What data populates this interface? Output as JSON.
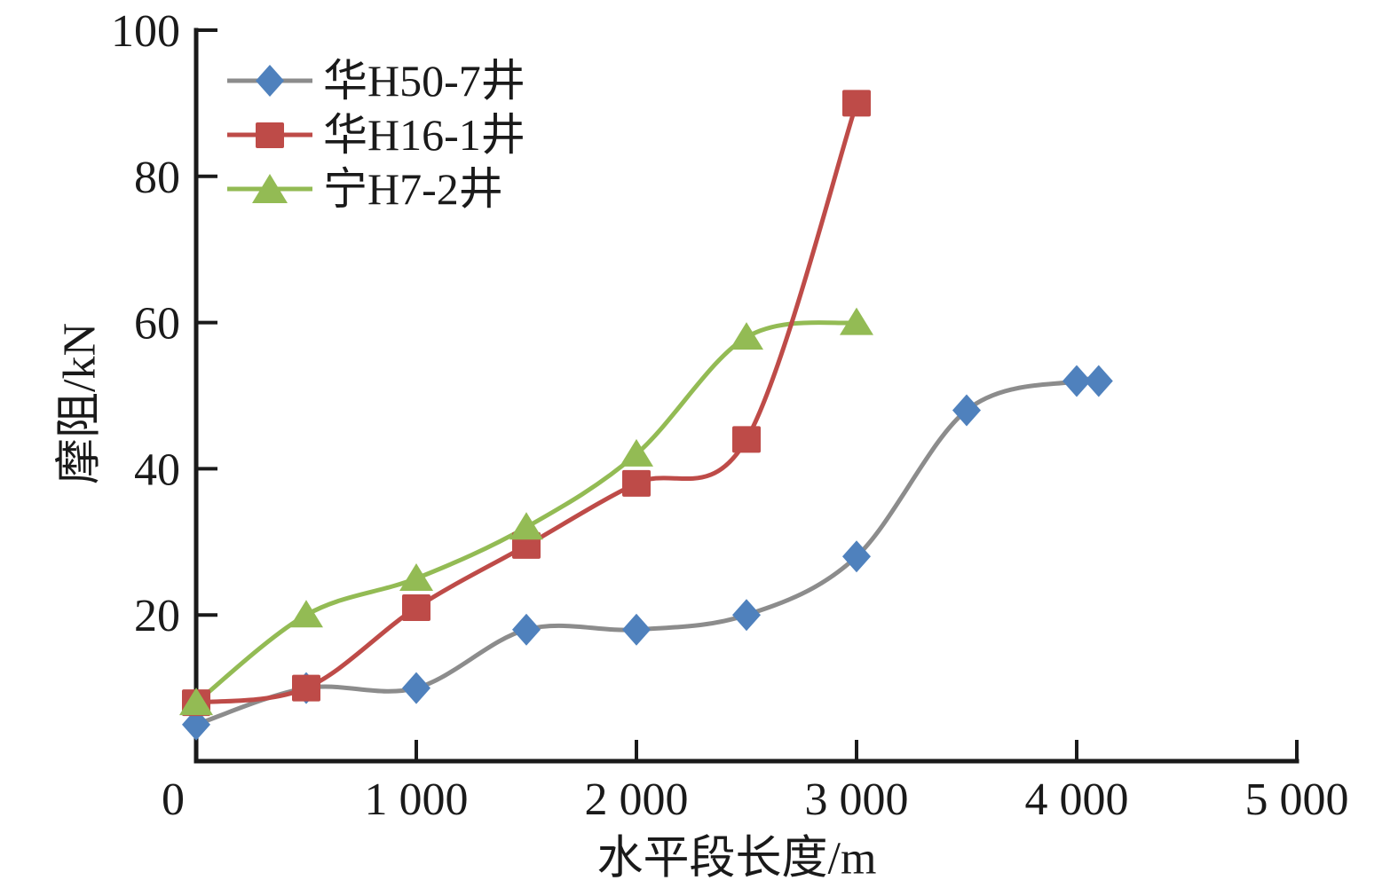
{
  "chart_data": {
    "type": "line",
    "title": "",
    "xlabel": "水平段长度/m",
    "ylabel": "摩阻/kN",
    "xlim": [
      0,
      5000
    ],
    "ylim": [
      0,
      100
    ],
    "grid": false,
    "legend_position": "top-left-inside",
    "axis_color": "#1a1a1a",
    "x_ticks": [
      {
        "value": 0,
        "label": "0"
      },
      {
        "value": 1000,
        "label": "1 000"
      },
      {
        "value": 2000,
        "label": "2 000"
      },
      {
        "value": 3000,
        "label": "3 000"
      },
      {
        "value": 4000,
        "label": "4 000"
      },
      {
        "value": 5000,
        "label": "5 000"
      }
    ],
    "y_ticks": [
      {
        "value": 20,
        "label": "20"
      },
      {
        "value": 40,
        "label": "40"
      },
      {
        "value": 60,
        "label": "60"
      },
      {
        "value": 80,
        "label": "80"
      },
      {
        "value": 100,
        "label": "100"
      }
    ],
    "series": [
      {
        "name": "华H50-7井",
        "marker": "diamond",
        "marker_color": "#4f81bd",
        "line_color": "#8c8c8c",
        "points": [
          [
            0,
            5
          ],
          [
            500,
            10
          ],
          [
            1000,
            10
          ],
          [
            1500,
            18
          ],
          [
            2000,
            18
          ],
          [
            2500,
            20
          ],
          [
            3000,
            28
          ],
          [
            3500,
            48
          ],
          [
            4000,
            52
          ],
          [
            4100,
            52
          ]
        ]
      },
      {
        "name": "华H16-1井",
        "marker": "square",
        "marker_color": "#be4b48",
        "line_color": "#be4b48",
        "points": [
          [
            0,
            8
          ],
          [
            500,
            10
          ],
          [
            1000,
            21
          ],
          [
            1500,
            29.5
          ],
          [
            2000,
            38
          ],
          [
            2500,
            44
          ],
          [
            3000,
            90
          ]
        ]
      },
      {
        "name": "宁H7-2井",
        "marker": "triangle",
        "marker_color": "#93bb54",
        "line_color": "#93bb54",
        "points": [
          [
            0,
            8
          ],
          [
            500,
            20
          ],
          [
            1000,
            25
          ],
          [
            1500,
            32
          ],
          [
            2000,
            42
          ],
          [
            2500,
            58
          ],
          [
            3000,
            60
          ]
        ]
      }
    ]
  }
}
